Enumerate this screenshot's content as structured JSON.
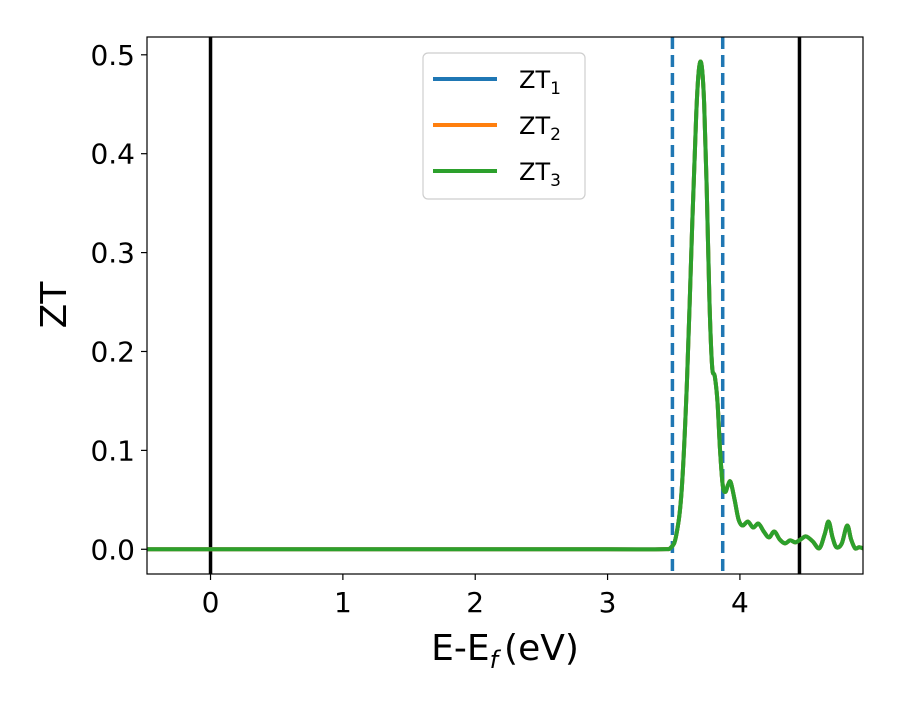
{
  "chart_data": {
    "type": "line",
    "title": "",
    "xlabel": "E-E",
    "xlabel_subscript": "f",
    "xlabel_unit": "(eV)",
    "ylabel": "ZT",
    "xlim": [
      -0.48,
      4.93
    ],
    "ylim": [
      -0.025,
      0.518
    ],
    "xticks": [
      0,
      1,
      2,
      3,
      4
    ],
    "xtick_labels": [
      "0",
      "1",
      "2",
      "3",
      "4"
    ],
    "yticks": [
      0.0,
      0.1,
      0.2,
      0.3,
      0.4,
      0.5
    ],
    "ytick_labels": [
      "0.0",
      "0.1",
      "0.2",
      "0.3",
      "0.4",
      "0.5"
    ],
    "grid": false,
    "legend_position": "top-center",
    "series": [
      {
        "name": "ZT",
        "subscript": "1",
        "color": "#1f77b4"
      },
      {
        "name": "ZT",
        "subscript": "2",
        "color": "#ff7f0e"
      },
      {
        "name": "ZT",
        "subscript": "3",
        "color": "#2ca02c"
      }
    ],
    "x": [
      -0.48,
      0.0,
      1.0,
      2.0,
      3.0,
      3.4,
      3.48,
      3.52,
      3.56,
      3.6,
      3.64,
      3.67,
      3.69,
      3.71,
      3.73,
      3.75,
      3.77,
      3.79,
      3.81,
      3.83,
      3.85,
      3.87,
      3.89,
      3.91,
      3.93,
      3.96,
      3.99,
      4.02,
      4.06,
      4.1,
      4.14,
      4.18,
      4.22,
      4.26,
      4.3,
      4.34,
      4.38,
      4.42,
      4.46,
      4.5,
      4.55,
      4.6,
      4.64,
      4.67,
      4.7,
      4.73,
      4.77,
      4.81,
      4.84,
      4.87,
      4.9,
      4.93
    ],
    "y": [
      0.0,
      0.0,
      0.0,
      0.0,
      0.0,
      0.0,
      0.002,
      0.015,
      0.06,
      0.17,
      0.33,
      0.44,
      0.485,
      0.49,
      0.45,
      0.36,
      0.25,
      0.185,
      0.175,
      0.15,
      0.1,
      0.065,
      0.058,
      0.065,
      0.068,
      0.05,
      0.03,
      0.024,
      0.028,
      0.022,
      0.026,
      0.018,
      0.012,
      0.018,
      0.01,
      0.006,
      0.009,
      0.007,
      0.01,
      0.013,
      0.008,
      0.001,
      0.015,
      0.028,
      0.012,
      0.002,
      0.006,
      0.024,
      0.01,
      0.001,
      0.002,
      0.001
    ],
    "vlines_solid": [
      0.0,
      4.45
    ],
    "vlines_dashed": [
      3.49,
      3.87
    ],
    "vline_solid_color": "#000000",
    "vline_dashed_color": "#1f77b4"
  }
}
